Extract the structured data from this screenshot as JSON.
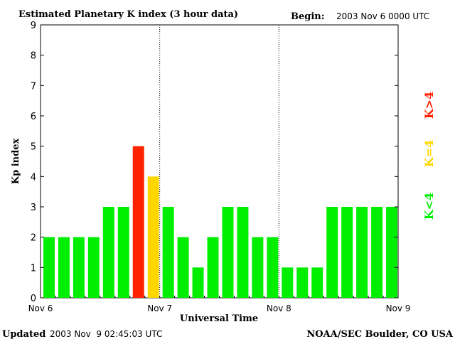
{
  "header": {
    "title": "Estimated Planetary K index (3 hour data)",
    "begin_label": "Begin:",
    "begin_value": "2003 Nov 6 0000 UTC"
  },
  "footer": {
    "updated_label": "Updated",
    "updated_value": "2003 Nov  9 02:45:03 UTC",
    "source": "NOAA/SEC Boulder, CO USA"
  },
  "legend": {
    "low": "K<4",
    "mid": "K=4",
    "high": "K>4"
  },
  "colors": {
    "low": "#00ee00",
    "mid": "#ffd700",
    "high": "#ff2200",
    "divider": "#000000"
  },
  "chart_data": {
    "type": "bar",
    "title": "Estimated Planetary K index (3 hour data)",
    "xlabel": "Universal Time",
    "ylabel": "Kp index",
    "ylim": [
      0,
      9
    ],
    "yticks": [
      0,
      1,
      2,
      3,
      4,
      5,
      6,
      7,
      8,
      9
    ],
    "day_labels": [
      "Nov 6",
      "Nov 7",
      "Nov 8",
      "Nov 9"
    ],
    "interval_hours": 3,
    "values": [
      2,
      2,
      2,
      2,
      3,
      3,
      5,
      4,
      3,
      2,
      1,
      2,
      3,
      3,
      2,
      2,
      1,
      1,
      1,
      3,
      3,
      3,
      3,
      3
    ],
    "grid": false,
    "day_dividers": true,
    "legend_position": "right"
  }
}
